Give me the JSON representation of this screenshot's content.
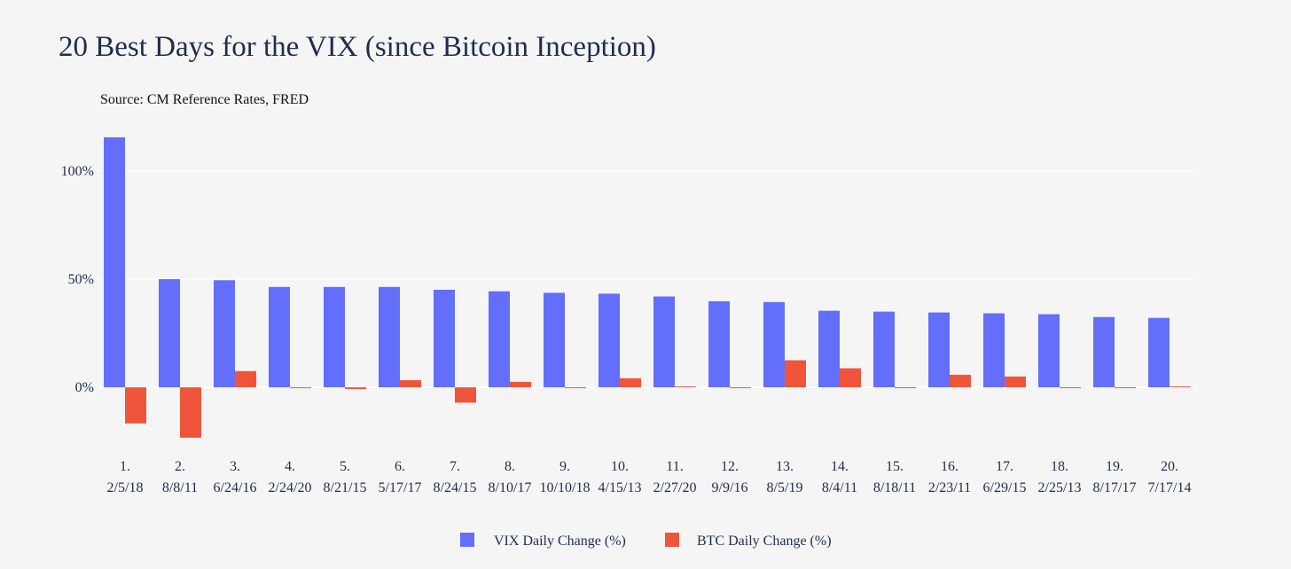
{
  "chart_data": {
    "type": "bar",
    "title": "20 Best Days for the VIX (since Bitcoin Inception)",
    "subtitle": "Source: CM Reference Rates, FRED",
    "categories": [
      [
        "1.",
        "2/5/18"
      ],
      [
        "2.",
        "8/8/11"
      ],
      [
        "3.",
        "6/24/16"
      ],
      [
        "4.",
        "2/24/20"
      ],
      [
        "5.",
        "8/21/15"
      ],
      [
        "6.",
        "5/17/17"
      ],
      [
        "7.",
        "8/24/15"
      ],
      [
        "8.",
        "8/10/17"
      ],
      [
        "9.",
        "10/10/18"
      ],
      [
        "10.",
        "4/15/13"
      ],
      [
        "11.",
        "2/27/20"
      ],
      [
        "12.",
        "9/9/16"
      ],
      [
        "13.",
        "8/5/19"
      ],
      [
        "14.",
        "8/4/11"
      ],
      [
        "15.",
        "8/18/11"
      ],
      [
        "16.",
        "2/23/11"
      ],
      [
        "17.",
        "6/29/15"
      ],
      [
        "18.",
        "2/25/13"
      ],
      [
        "19.",
        "8/17/17"
      ],
      [
        "20.",
        "7/17/14"
      ]
    ],
    "series": [
      {
        "name": "VIX Daily Change (%)",
        "color": "#636efa",
        "values": [
          115.6,
          50.0,
          49.5,
          46.4,
          46.4,
          46.4,
          45.1,
          44.4,
          43.7,
          43.3,
          42.0,
          39.8,
          39.4,
          35.4,
          35.0,
          34.6,
          34.2,
          33.8,
          32.5,
          32.1
        ]
      },
      {
        "name": "BTC Daily Change (%)",
        "color": "#ef553b",
        "values": [
          -16.7,
          -23.3,
          7.5,
          -0.4,
          -0.8,
          3.3,
          -7.1,
          2.5,
          -0.4,
          4.2,
          0.4,
          -0.4,
          12.5,
          8.8,
          -0.1,
          5.8,
          5.0,
          -0.4,
          -0.1,
          0.4
        ]
      }
    ],
    "yaxis": {
      "ticks": [
        0,
        50,
        100
      ],
      "tick_labels": [
        "0%",
        "50%",
        "100%"
      ],
      "ylim": [
        -28,
        118
      ]
    },
    "grid": true,
    "legend": "bottom-center"
  }
}
